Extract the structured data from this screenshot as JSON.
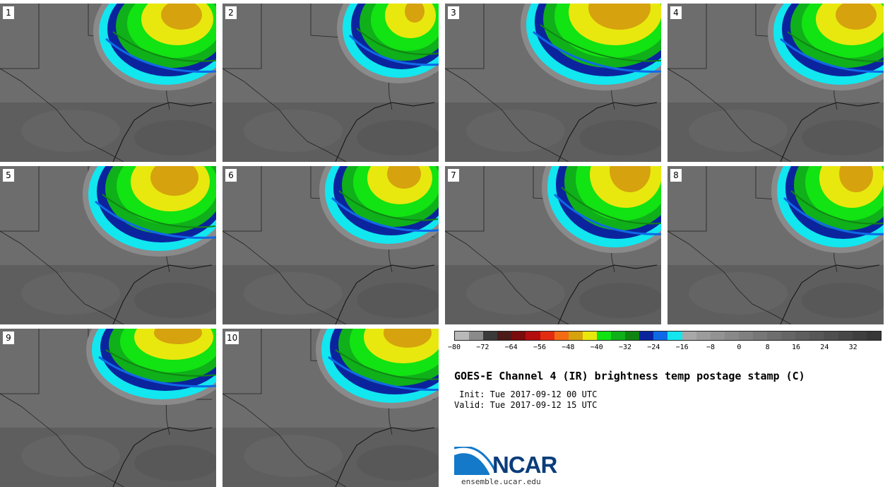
{
  "stamps": [
    "1",
    "2",
    "3",
    "4",
    "5",
    "6",
    "7",
    "8",
    "9",
    "10"
  ],
  "colorbar": {
    "colors": [
      "#b9b9b9",
      "#8a8a8a",
      "#3a3a3a",
      "#4d1a1a",
      "#7a0c0c",
      "#b30d0d",
      "#e32b12",
      "#f36b14",
      "#d6a20d",
      "#e8e80f",
      "#12e312",
      "#0fb01a",
      "#108412",
      "#0b249e",
      "#0f69e6",
      "#12e6ef",
      "#a8a8a8",
      "#9c9c9c",
      "#939393",
      "#898989",
      "#808080",
      "#777777",
      "#6e6e6e",
      "#666666",
      "#5e5e5e",
      "#575757",
      "#4f4f4f",
      "#474747",
      "#3f3f3f",
      "#373737"
    ],
    "ticks": [
      "−80",
      "−72",
      "−64",
      "−56",
      "−48",
      "−40",
      "−32",
      "−24",
      "−16",
      "−8",
      "0",
      "8",
      "16",
      "24",
      "32"
    ]
  },
  "title": "GOES-E Channel 4 (IR) brightness temp postage stamp (C)",
  "init": " Init: Tue 2017-09-12 00 UTC",
  "valid": "Valid: Tue 2017-09-12 15 UTC",
  "logo": {
    "text": "NCAR",
    "url": "ensemble.ucar.edu"
  }
}
